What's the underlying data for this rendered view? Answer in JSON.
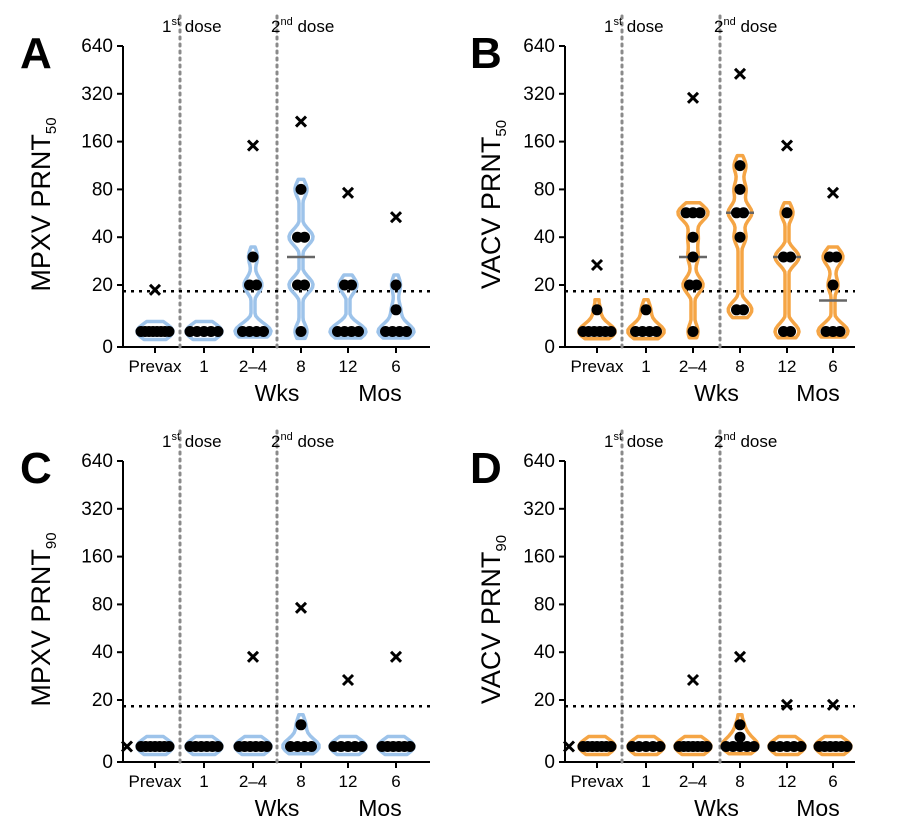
{
  "colors": {
    "mpxv": "#9dc3ea",
    "vacv": "#f5a545",
    "text": "#000000"
  },
  "shared": {
    "y_ticks": [
      "0",
      "20",
      "40",
      "80",
      "160",
      "320",
      "640"
    ],
    "categories": [
      "Prevax",
      "1",
      "2–4",
      "8",
      "12",
      "6"
    ],
    "unit_labels": [
      "Wks",
      "Mos"
    ],
    "dose1_label": {
      "ordinal": "1",
      "sup": "st",
      "text": " dose"
    },
    "dose2_label": {
      "ordinal": "2",
      "sup": "nd",
      "text": " dose"
    },
    "threshold": 18
  },
  "chart_data": [
    {
      "type": "scatter",
      "panel": "A",
      "ylabel": {
        "main": "MPXV PRNT",
        "sub": "50"
      },
      "color_key": "mpxv",
      "categories": [
        "Prevax",
        "1",
        "2–4",
        "8",
        "12",
        "6"
      ],
      "ylim": [
        0,
        640
      ],
      "y_ticks": [
        0,
        20,
        40,
        80,
        160,
        320,
        640
      ],
      "threshold": 18,
      "points": [
        [
          5,
          5,
          5,
          5,
          5,
          5,
          5,
          5
        ],
        [
          5,
          5,
          5,
          5,
          5
        ],
        [
          5,
          5,
          5,
          5,
          20,
          20,
          30
        ],
        [
          5,
          20,
          20,
          40,
          40,
          80
        ],
        [
          5,
          5,
          5,
          5,
          20,
          20
        ],
        [
          5,
          5,
          5,
          5,
          12,
          20
        ]
      ],
      "outliers": [
        12,
        null,
        113,
        160,
        57,
        40
      ],
      "medians": [
        5,
        5,
        5,
        30,
        5,
        5
      ]
    },
    {
      "type": "scatter",
      "panel": "B",
      "ylabel": {
        "main": "VACV PRNT",
        "sub": "50"
      },
      "color_key": "vacv",
      "categories": [
        "Prevax",
        "1",
        "2–4",
        "8",
        "12",
        "6"
      ],
      "ylim": [
        0,
        640
      ],
      "y_ticks": [
        0,
        20,
        40,
        80,
        160,
        320,
        640
      ],
      "threshold": 18,
      "points": [
        [
          5,
          5,
          5,
          5,
          5,
          5,
          12
        ],
        [
          5,
          5,
          5,
          5,
          12
        ],
        [
          5,
          20,
          20,
          30,
          40,
          57,
          57,
          57
        ],
        [
          12,
          12,
          40,
          57,
          57,
          80,
          113
        ],
        [
          5,
          5,
          30,
          30,
          57
        ],
        [
          5,
          5,
          5,
          20,
          30,
          30
        ]
      ],
      "outliers": [
        20,
        null,
        226,
        320,
        113,
        57
      ],
      "medians": [
        5,
        5,
        30,
        57,
        30,
        15
      ]
    },
    {
      "type": "scatter",
      "panel": "C",
      "ylabel": {
        "main": "MPXV PRNT",
        "sub": "90"
      },
      "color_key": "mpxv",
      "categories": [
        "Prevax",
        "1",
        "2–4",
        "8",
        "12",
        "6"
      ],
      "ylim": [
        0,
        640
      ],
      "y_ticks": [
        0,
        20,
        40,
        80,
        160,
        320,
        640
      ],
      "threshold": 18,
      "points": [
        [
          5,
          5,
          5,
          5,
          5,
          5,
          5
        ],
        [
          5,
          5,
          5,
          5,
          5,
          5
        ],
        [
          5,
          5,
          5,
          5,
          5,
          5
        ],
        [
          5,
          5,
          5,
          5,
          12
        ],
        [
          5,
          5,
          5,
          5,
          5
        ],
        [
          5,
          5,
          5,
          5,
          5,
          5
        ]
      ],
      "outliers": [
        5,
        null,
        28,
        57,
        20,
        28
      ],
      "medians": [
        5,
        5,
        5,
        5,
        5,
        5
      ]
    },
    {
      "type": "scatter",
      "panel": "D",
      "ylabel": {
        "main": "VACV PRNT",
        "sub": "90"
      },
      "color_key": "vacv",
      "categories": [
        "Prevax",
        "1",
        "2–4",
        "8",
        "12",
        "6"
      ],
      "ylim": [
        0,
        640
      ],
      "y_ticks": [
        0,
        20,
        40,
        80,
        160,
        320,
        640
      ],
      "threshold": 18,
      "points": [
        [
          5,
          5,
          5,
          5,
          5,
          5,
          5
        ],
        [
          5,
          5,
          5,
          5,
          5
        ],
        [
          5,
          5,
          5,
          5,
          5,
          5,
          5
        ],
        [
          5,
          5,
          5,
          5,
          5,
          8,
          12
        ],
        [
          5,
          5,
          5,
          5,
          5
        ],
        [
          5,
          5,
          5,
          5,
          5,
          5
        ]
      ],
      "outliers": [
        5,
        null,
        20,
        28,
        12,
        12
      ],
      "medians": [
        5,
        5,
        5,
        5,
        5,
        5
      ]
    }
  ]
}
